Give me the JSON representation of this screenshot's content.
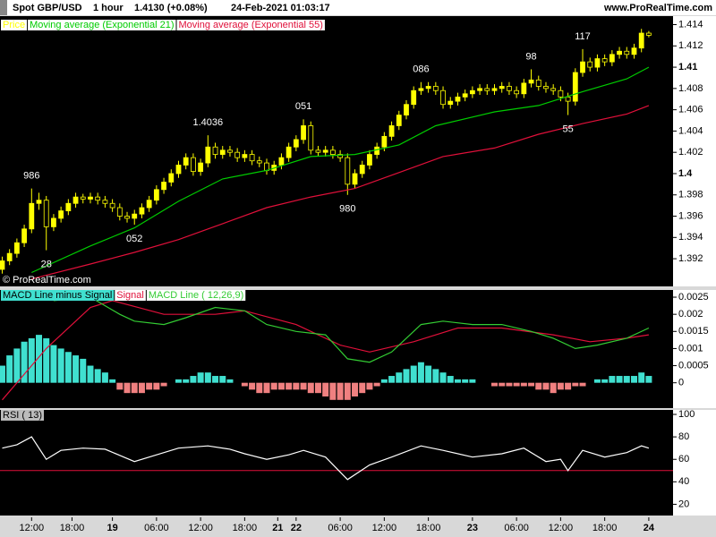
{
  "header": {
    "symbol": "Spot GBP/USD",
    "interval": "1 hour",
    "last": "1.4130 (+0.08%)",
    "timestamp": "24-Feb-2021 01:03:17",
    "site": "www.ProRealTime.com"
  },
  "chart_data": [
    {
      "type": "candlestick",
      "legend_label": "Price",
      "color": "#ffff00",
      "watermark": "© ProRealTime.com",
      "xlim": [
        -0.3,
        91.3
      ],
      "ylim": [
        1.3894,
        1.4148
      ],
      "yticks": [
        1.414,
        1.412,
        1.41,
        1.408,
        1.406,
        1.404,
        1.402,
        1.4,
        1.398,
        1.396,
        1.394,
        1.392
      ],
      "xticks": [
        {
          "value": 4,
          "label": "12:00"
        },
        {
          "value": 9.5,
          "label": "18:00"
        },
        {
          "value": 15,
          "label": "19"
        },
        {
          "value": 21,
          "label": "06:00"
        },
        {
          "value": 27,
          "label": "12:00"
        },
        {
          "value": 33,
          "label": "18:00"
        },
        {
          "value": 37.5,
          "label": "21"
        },
        {
          "value": 40,
          "label": "22"
        },
        {
          "value": 46,
          "label": "06:00"
        },
        {
          "value": 52,
          "label": "12:00"
        },
        {
          "value": 58,
          "label": "18:00"
        },
        {
          "value": 64,
          "label": "23"
        },
        {
          "value": 70,
          "label": "06:00"
        },
        {
          "value": 76,
          "label": "12:00"
        },
        {
          "value": 82,
          "label": "18:00"
        },
        {
          "value": 88,
          "label": "24"
        }
      ],
      "open": [
        1.391,
        1.3918,
        1.3925,
        1.3935,
        1.3948,
        1.3972,
        1.3975,
        1.395,
        1.3958,
        1.3965,
        1.3972,
        1.3978,
        1.3976,
        1.3978,
        1.3975,
        1.3972,
        1.3968,
        1.396,
        1.3958,
        1.3962,
        1.3968,
        1.3975,
        1.3985,
        1.3992,
        1.4,
        1.4008,
        1.4015,
        1.4002,
        1.401,
        1.4025,
        1.4018,
        1.4022,
        1.402,
        1.4015,
        1.4018,
        1.4012,
        1.401,
        1.4003,
        1.4008,
        1.4015,
        1.4025,
        1.4032,
        1.4045,
        1.4022,
        1.402,
        1.4022,
        1.4018,
        1.4015,
        1.399,
        1.4,
        1.4008,
        1.4018,
        1.4025,
        1.4035,
        1.4045,
        1.4055,
        1.4065,
        1.4078,
        1.408,
        1.4082,
        1.4078,
        1.4065,
        1.4068,
        1.4072,
        1.4075,
        1.4078,
        1.408,
        1.4078,
        1.408,
        1.4082,
        1.4078,
        1.4075,
        1.4085,
        1.4088,
        1.4082,
        1.408,
        1.4078,
        1.4072,
        1.4068,
        1.4095,
        1.4105,
        1.41,
        1.4108,
        1.4105,
        1.4112,
        1.4115,
        1.4112,
        1.4118,
        1.4132
      ],
      "high": [
        1.3922,
        1.3929,
        1.3939,
        1.3952,
        1.3986,
        1.3982,
        1.3979,
        1.3962,
        1.3969,
        1.3976,
        1.3982,
        1.3981,
        1.3982,
        1.3982,
        1.3979,
        1.3976,
        1.3972,
        1.3964,
        1.3966,
        1.3972,
        1.3979,
        1.3989,
        1.3996,
        1.4004,
        1.4012,
        1.4019,
        1.4019,
        1.4014,
        1.4036,
        1.4029,
        1.4026,
        1.4026,
        1.4024,
        1.4022,
        1.4022,
        1.4016,
        1.4014,
        1.4012,
        1.4019,
        1.4029,
        1.4036,
        1.4051,
        1.4049,
        1.4026,
        1.4026,
        1.4026,
        1.4022,
        1.4019,
        1.4004,
        1.4012,
        1.4022,
        1.4029,
        1.4039,
        1.4049,
        1.4059,
        1.4069,
        1.4082,
        1.4086,
        1.4086,
        1.4086,
        1.4082,
        1.4072,
        1.4076,
        1.4079,
        1.4082,
        1.4084,
        1.4084,
        1.4084,
        1.4086,
        1.4086,
        1.4082,
        1.4089,
        1.4098,
        1.4092,
        1.4086,
        1.4084,
        1.4082,
        1.4076,
        1.4099,
        1.4117,
        1.4109,
        1.4112,
        1.4112,
        1.4116,
        1.4119,
        1.4119,
        1.4122,
        1.4136,
        1.4134
      ],
      "low": [
        1.3906,
        1.3914,
        1.3921,
        1.3931,
        1.3944,
        1.3966,
        1.3928,
        1.3946,
        1.3954,
        1.3961,
        1.3968,
        1.3972,
        1.3972,
        1.3971,
        1.3968,
        1.3964,
        1.3956,
        1.3954,
        1.3952,
        1.3958,
        1.3964,
        1.3971,
        1.3981,
        1.3988,
        1.3996,
        1.4004,
        1.3998,
        1.3998,
        1.4006,
        1.4014,
        1.4014,
        1.4016,
        1.4011,
        1.4011,
        1.4008,
        1.4006,
        1.3999,
        1.3999,
        1.4004,
        1.4011,
        1.4021,
        1.4028,
        1.4018,
        1.4016,
        1.4016,
        1.4014,
        1.4011,
        1.398,
        1.3986,
        1.3996,
        1.4004,
        1.4014,
        1.4021,
        1.4031,
        1.4041,
        1.4051,
        1.4061,
        1.4074,
        1.4076,
        1.4074,
        1.4061,
        1.4061,
        1.4064,
        1.4068,
        1.4071,
        1.4074,
        1.4074,
        1.4074,
        1.4076,
        1.4074,
        1.4071,
        1.4071,
        1.4081,
        1.4078,
        1.4076,
        1.4074,
        1.4068,
        1.4055,
        1.4064,
        1.4091,
        1.4096,
        1.4096,
        1.4101,
        1.4101,
        1.4108,
        1.4108,
        1.4108,
        1.4114,
        1.4128
      ],
      "close": [
        1.3918,
        1.3925,
        1.3935,
        1.3948,
        1.3972,
        1.3975,
        1.395,
        1.3958,
        1.3965,
        1.3972,
        1.3978,
        1.3976,
        1.3978,
        1.3975,
        1.3972,
        1.3968,
        1.396,
        1.3958,
        1.3962,
        1.3968,
        1.3975,
        1.3985,
        1.3992,
        1.4,
        1.4008,
        1.4015,
        1.4002,
        1.401,
        1.4025,
        1.4018,
        1.4022,
        1.402,
        1.4015,
        1.4018,
        1.4012,
        1.401,
        1.4003,
        1.4008,
        1.4015,
        1.4025,
        1.4032,
        1.4045,
        1.4022,
        1.402,
        1.4022,
        1.4018,
        1.4015,
        1.399,
        1.4,
        1.4008,
        1.4018,
        1.4025,
        1.4035,
        1.4045,
        1.4055,
        1.4065,
        1.4078,
        1.408,
        1.4082,
        1.4078,
        1.4065,
        1.4068,
        1.4072,
        1.4075,
        1.4078,
        1.408,
        1.4078,
        1.408,
        1.4082,
        1.4078,
        1.4075,
        1.4085,
        1.4088,
        1.4082,
        1.408,
        1.4078,
        1.4072,
        1.4068,
        1.4095,
        1.4105,
        1.41,
        1.4108,
        1.4105,
        1.4112,
        1.4115,
        1.4112,
        1.4118,
        1.4132,
        1.413
      ],
      "series": [
        {
          "name": "Moving average (Exponential 21)",
          "color": "#00cc00",
          "x": [
            4,
            12,
            18,
            24,
            30,
            36,
            42,
            48,
            54,
            59,
            67,
            73,
            79,
            85,
            88
          ],
          "values": [
            1.3907,
            1.3932,
            1.3949,
            1.3974,
            1.3995,
            1.4003,
            1.4016,
            1.4018,
            1.4027,
            1.4045,
            1.4058,
            1.4064,
            1.4077,
            1.4089,
            1.41
          ]
        },
        {
          "name": "Moving average (Exponential 55)",
          "color": "#e0103a",
          "x": [
            4,
            12,
            18,
            24,
            30,
            36,
            42,
            48,
            54,
            60,
            67,
            73,
            79,
            85,
            88
          ],
          "values": [
            1.3901,
            1.3915,
            1.3926,
            1.3938,
            1.3953,
            1.3968,
            1.3978,
            1.3986,
            1.4001,
            1.4016,
            1.4024,
            1.4037,
            1.4047,
            1.4056,
            1.4064
          ]
        }
      ],
      "annotations": [
        {
          "text": "986",
          "x": 4,
          "y": 1.3986,
          "position": "above"
        },
        {
          "text": "28",
          "x": 6,
          "y": 1.3928,
          "position": "below"
        },
        {
          "text": "052",
          "x": 18,
          "y": 1.3952,
          "position": "below"
        },
        {
          "text": "1.4036",
          "x": 28,
          "y": 1.4036,
          "position": "above"
        },
        {
          "text": "051",
          "x": 41,
          "y": 1.4051,
          "position": "above"
        },
        {
          "text": "980",
          "x": 47,
          "y": 1.398,
          "position": "below"
        },
        {
          "text": "086",
          "x": 57,
          "y": 1.4086,
          "position": "above"
        },
        {
          "text": "98",
          "x": 72,
          "y": 1.4098,
          "position": "above"
        },
        {
          "text": "55",
          "x": 77,
          "y": 1.4055,
          "position": "below"
        },
        {
          "text": "117",
          "x": 79,
          "y": 1.4117,
          "position": "above"
        }
      ]
    },
    {
      "type": "macd",
      "ylim": [
        -0.00074,
        0.00271
      ],
      "yticks": [
        0.0025,
        0.002,
        0.0015,
        0.001,
        0.0005,
        0
      ],
      "series": [
        {
          "name": "MACD Line minus Signal",
          "color": "#40e0d0",
          "negative_color": "#f08080",
          "values": [
            0.0005,
            0.0008,
            0.001,
            0.0012,
            0.0013,
            0.0014,
            0.0013,
            0.0011,
            0.001,
            0.0009,
            0.0008,
            0.0007,
            0.0005,
            0.0004,
            0.0003,
            0.0001,
            -0.0002,
            -0.0003,
            -0.0003,
            -0.0003,
            -0.0002,
            -0.0002,
            -0.0001,
            0.0,
            0.0001,
            0.0001,
            0.0002,
            0.0003,
            0.0003,
            0.0002,
            0.0002,
            0.0001,
            0.0,
            -0.0001,
            -0.0002,
            -0.0003,
            -0.0003,
            -0.0002,
            -0.0002,
            -0.0002,
            -0.0002,
            -0.0002,
            -0.0003,
            -0.0003,
            -0.0004,
            -0.0005,
            -0.0005,
            -0.0005,
            -0.0004,
            -0.0003,
            -0.0002,
            -0.0001,
            0.0001,
            0.0002,
            0.0003,
            0.0004,
            0.0005,
            0.0006,
            0.0005,
            0.0004,
            0.0003,
            0.0002,
            0.0001,
            0.0001,
            0.0001,
            0.0,
            0.0,
            -0.0001,
            -0.0001,
            -0.0001,
            -0.0001,
            -0.0001,
            -0.0001,
            -0.0002,
            -0.0002,
            -0.0003,
            -0.0002,
            -0.0002,
            -0.0001,
            -0.0001,
            0.0,
            0.0001,
            0.0001,
            0.0002,
            0.0002,
            0.0002,
            0.0002,
            0.0003,
            0.0002
          ]
        },
        {
          "name": "Signal",
          "color": "#e0103a",
          "x": [
            0,
            6,
            12,
            15,
            22,
            29,
            33,
            40,
            46,
            50,
            56,
            62,
            68,
            75,
            80,
            85,
            88
          ],
          "values": [
            -0.0005,
            0.001,
            0.0022,
            0.0024,
            0.002,
            0.002,
            0.0021,
            0.0017,
            0.0011,
            0.0009,
            0.0012,
            0.0016,
            0.0016,
            0.0014,
            0.0012,
            0.0013,
            0.0014
          ]
        },
        {
          "name": "MACD Line ( 12,26,9)",
          "color": "#33cc33",
          "x": [
            7,
            12,
            16,
            18,
            22,
            25,
            29,
            33,
            36,
            40,
            44,
            47,
            50,
            53,
            57,
            60,
            64,
            68,
            72,
            75,
            78,
            81,
            85,
            88
          ],
          "values": [
            0.0024,
            0.0025,
            0.002,
            0.0018,
            0.0017,
            0.0019,
            0.0022,
            0.0021,
            0.0017,
            0.0015,
            0.0014,
            0.0007,
            0.0006,
            0.0009,
            0.0017,
            0.0018,
            0.0017,
            0.0017,
            0.0015,
            0.0013,
            0.001,
            0.0011,
            0.0013,
            0.0016
          ]
        }
      ]
    },
    {
      "type": "rsi",
      "ylim": [
        10,
        104
      ],
      "yticks": [
        100,
        80,
        60,
        40,
        20
      ],
      "level": 50,
      "level_color": "#e0103a",
      "series": [
        {
          "name": "RSI ( 13)",
          "color": "#ffffff",
          "x": [
            0,
            2,
            4,
            6,
            8,
            11,
            14,
            18,
            21,
            24,
            28,
            31,
            33,
            36,
            39,
            41,
            44,
            47,
            50,
            53,
            57,
            60,
            64,
            68,
            71,
            74,
            76,
            77,
            79,
            82,
            85,
            87,
            88
          ],
          "values": [
            70,
            73,
            80,
            60,
            68,
            70,
            69,
            58,
            64,
            70,
            72,
            69,
            65,
            60,
            64,
            68,
            62,
            42,
            55,
            62,
            72,
            68,
            62,
            65,
            70,
            58,
            60,
            50,
            68,
            62,
            66,
            72,
            70
          ]
        }
      ]
    }
  ]
}
